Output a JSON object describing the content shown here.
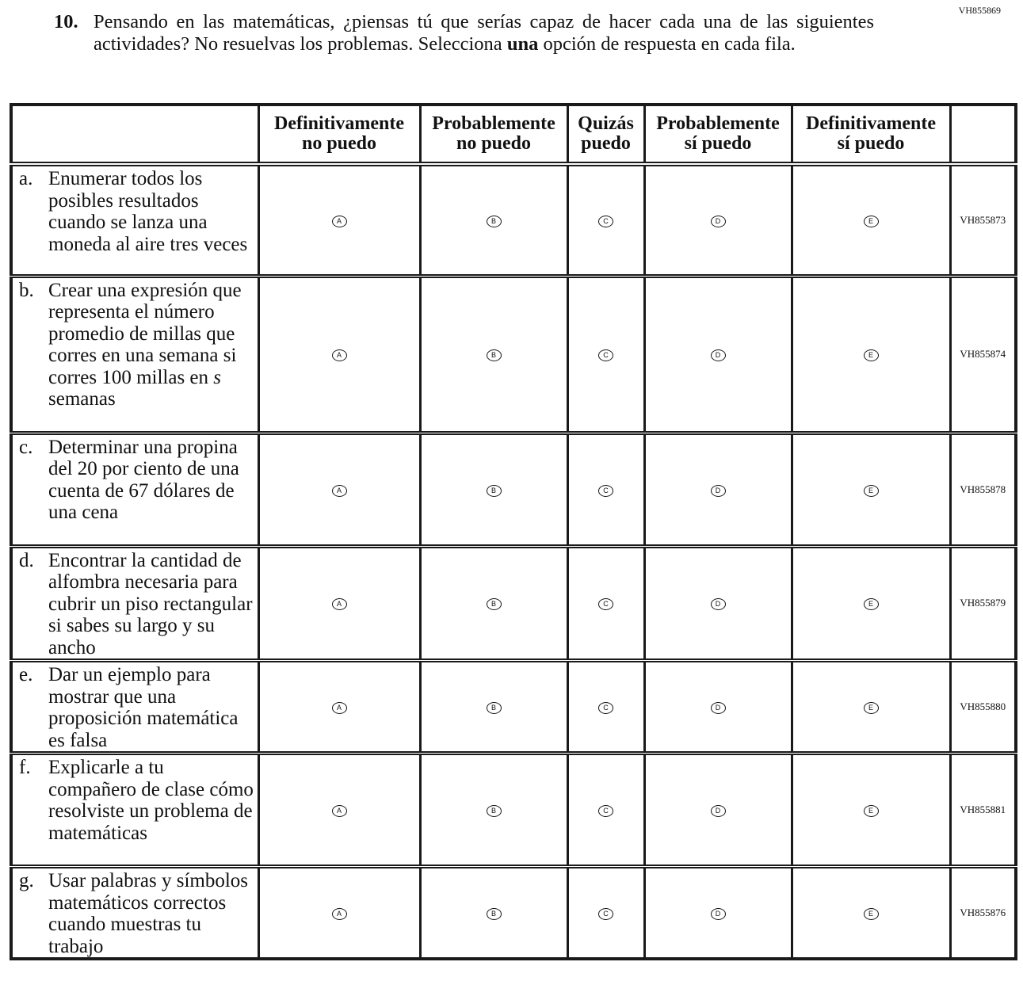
{
  "page_code": "VH855869",
  "question": {
    "number": "10.",
    "text_before": "Pensando en las matemáticas, ¿piensas tú que serías capaz de hacer cada una de las siguientes actividades? No resuelvas los problemas. Selecciona ",
    "emphasis": "una",
    "text_after": " opción de respuesta en cada fila."
  },
  "columns": [
    {
      "line1": "Definitivamente",
      "line2": "no puedo"
    },
    {
      "line1": "Probablemente",
      "line2": "no puedo"
    },
    {
      "line1": "Quizás",
      "line2": "puedo"
    },
    {
      "line1": "Probablemente",
      "line2": "sí puedo"
    },
    {
      "line1": "Definitivamente",
      "line2": "sí puedo"
    }
  ],
  "options": [
    "A",
    "B",
    "C",
    "D",
    "E"
  ],
  "rows": [
    {
      "letter": "a.",
      "text": "Enumerar todos los posibles resultados cuando se lanza una moneda al aire tres veces",
      "code": "VH855873"
    },
    {
      "letter": "b.",
      "text": "Crear una expresión que representa el número promedio de millas que corres en una semana si corres 100 millas en",
      "italic": "s",
      "text_end": " semanas",
      "code": "VH855874"
    },
    {
      "letter": "c.",
      "text": "Determinar una propina del 20 por ciento de una cuenta de 67 dólares de una cena",
      "code": "VH855878"
    },
    {
      "letter": "d.",
      "text": "Encontrar la cantidad de alfombra necesaria para cubrir un piso rectangular si sabes su largo y su ancho",
      "code": "VH855879"
    },
    {
      "letter": "e.",
      "text": "Dar un ejemplo para mostrar que una proposición matemática es falsa",
      "code": "VH855880"
    },
    {
      "letter": "f.",
      "text": "Explicarle a tu compañero de clase cómo resolviste un problema de matemáticas",
      "code": "VH855881"
    },
    {
      "letter": "g.",
      "text": "Usar palabras y símbolos matemáticos correctos cuando muestras tu trabajo",
      "code": "VH855876"
    }
  ]
}
